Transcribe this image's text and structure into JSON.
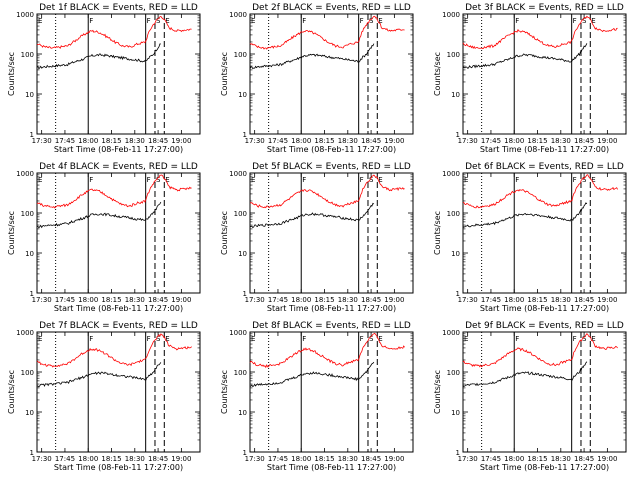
{
  "figure": {
    "panels": [
      {
        "title": "Det 1f BLACK = Events, RED = LLD"
      },
      {
        "title": "Det 2f BLACK = Events, RED = LLD"
      },
      {
        "title": "Det 3f BLACK = Events, RED = LLD"
      },
      {
        "title": "Det 4f BLACK = Events, RED = LLD"
      },
      {
        "title": "Det 5f BLACK = Events, RED = LLD"
      },
      {
        "title": "Det 6f BLACK = Events, RED = LLD"
      },
      {
        "title": "Det 7f BLACK = Events, RED = LLD"
      },
      {
        "title": "Det 8f BLACK = Events, RED = LLD"
      },
      {
        "title": "Det 9f BLACK = Events, RED = LLD"
      }
    ],
    "xlabel": "Start Time (08-Feb-11 17:27:00)",
    "ylabel": "Counts/sec",
    "xtick_labels": [
      "17:30",
      "17:45",
      "18:00",
      "18:15",
      "18:30",
      "18:45",
      "19:00"
    ],
    "ytick_labels": [
      "1",
      "10",
      "100",
      "1000"
    ],
    "marker_labels": [
      "E",
      "F",
      "F",
      "S",
      "E"
    ]
  },
  "colors": {
    "events": "#000000",
    "lld": "#ff0000"
  },
  "chart_data": {
    "type": "line",
    "panels": 9,
    "x_unit": "minutes after 17:27:00",
    "xlim": [
      0,
      105
    ],
    "ylim": [
      1,
      1000
    ],
    "yscale": "log",
    "xlabel": "Start Time (08-Feb-11 17:27:00)",
    "ylabel": "Counts/sec",
    "grid": false,
    "vertical_markers": [
      {
        "x": 12,
        "style": "dotted"
      },
      {
        "x": 33,
        "style": "solid"
      },
      {
        "x": 70,
        "style": "solid"
      },
      {
        "x": 76,
        "style": "dashed"
      },
      {
        "x": 82,
        "style": "dashed"
      }
    ],
    "series": [
      {
        "name": "Events",
        "color": "#000000",
        "x": [
          0,
          5,
          10,
          15,
          20,
          25,
          30,
          35,
          40,
          45,
          50,
          55,
          60,
          65,
          70,
          75,
          80
        ],
        "values": [
          45,
          48,
          50,
          52,
          55,
          65,
          75,
          90,
          95,
          92,
          85,
          80,
          75,
          70,
          65,
          100,
          180
        ]
      },
      {
        "name": "LLD",
        "color": "#ff0000",
        "x": [
          0,
          5,
          10,
          15,
          20,
          25,
          30,
          35,
          40,
          45,
          50,
          55,
          60,
          65,
          70,
          75,
          80,
          85,
          90,
          95,
          100
        ],
        "values": [
          180,
          150,
          140,
          150,
          160,
          220,
          300,
          380,
          350,
          270,
          200,
          160,
          150,
          180,
          200,
          550,
          900,
          450,
          380,
          400,
          420
        ]
      }
    ]
  }
}
